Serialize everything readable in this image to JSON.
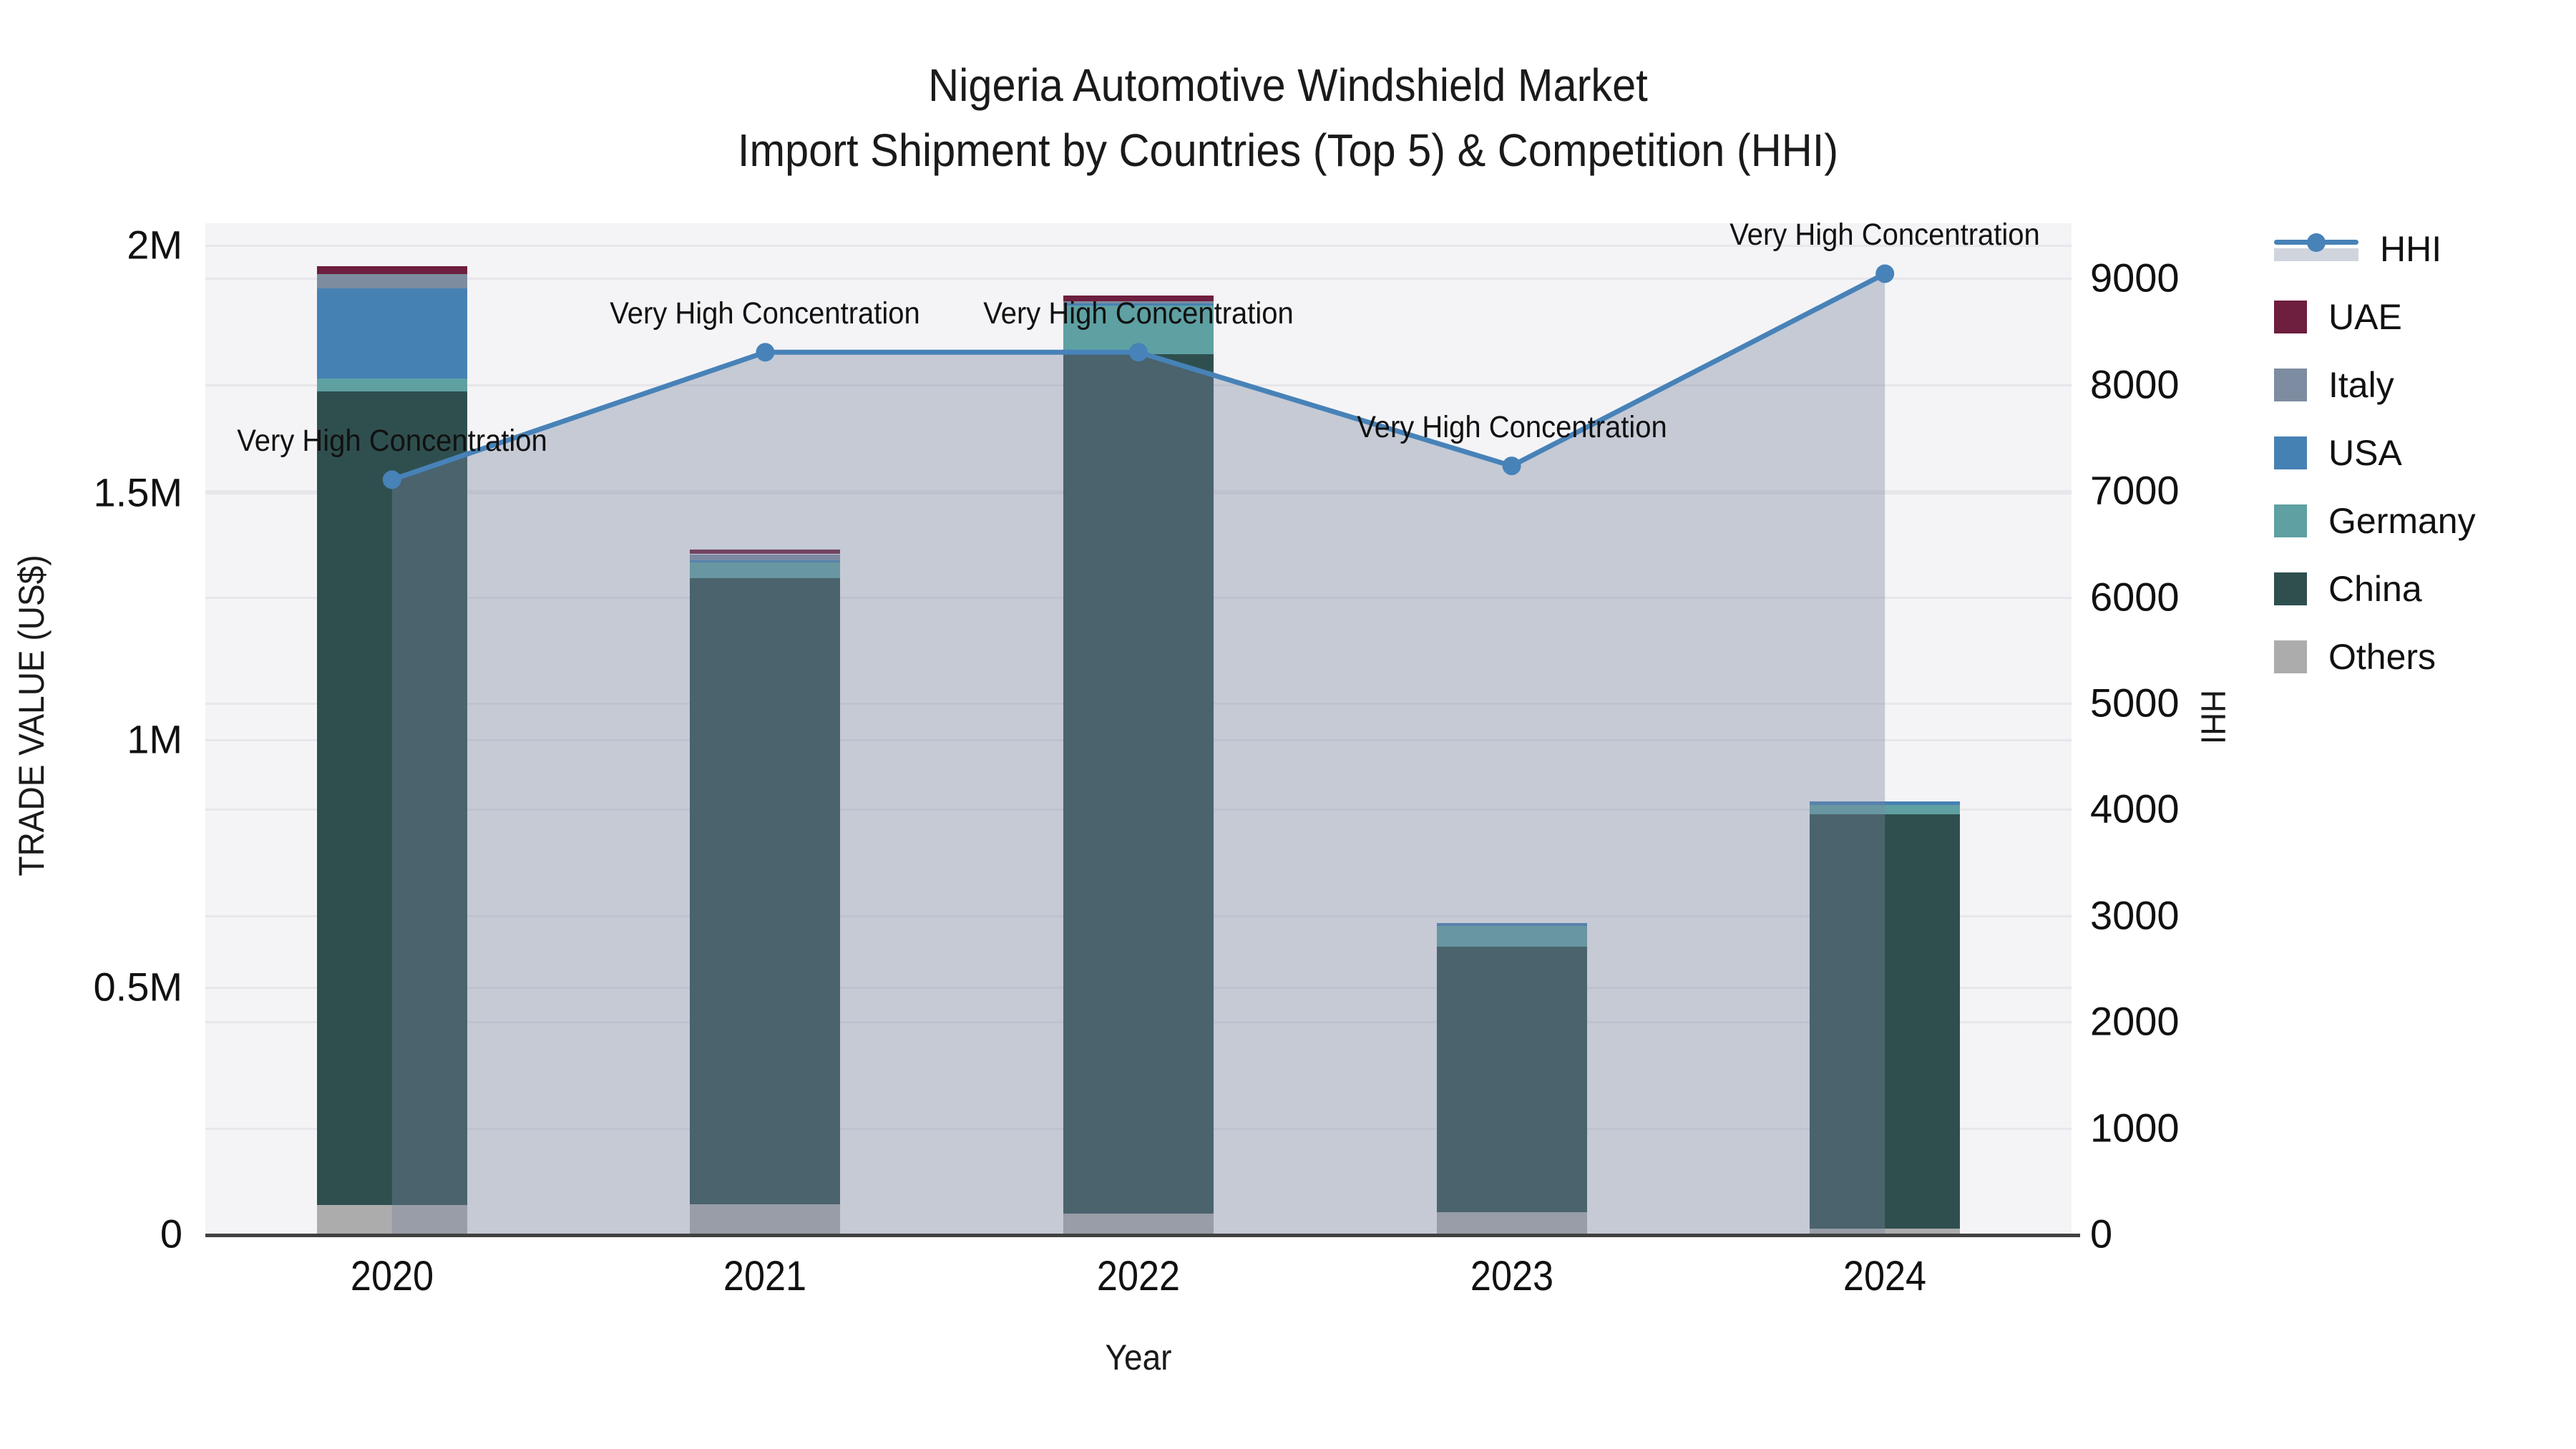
{
  "title": {
    "line1": "Nigeria Automotive Windshield Market",
    "line2": "Import Shipment by Countries (Top 5) & Competition (HHI)"
  },
  "axes": {
    "y_left": {
      "label": "TRADE VALUE (US$)",
      "tick_labels": [
        "0",
        "0.5M",
        "1M",
        "1.5M",
        "2M"
      ],
      "tick_values": [
        0,
        500000,
        1000000,
        1500000,
        2000000
      ],
      "max": 2000000
    },
    "y_right": {
      "label": "HHI",
      "tick_labels": [
        "0",
        "1000",
        "2000",
        "3000",
        "4000",
        "5000",
        "6000",
        "7000",
        "8000",
        "9000"
      ],
      "tick_values": [
        0,
        1000,
        2000,
        3000,
        4000,
        5000,
        6000,
        7000,
        8000,
        9000
      ],
      "max_tick": 9000
    },
    "x": {
      "label": "Year",
      "categories": [
        "2020",
        "2021",
        "2022",
        "2023",
        "2024"
      ]
    }
  },
  "chart_data": {
    "type": "combo: stacked bar + line (area fill)",
    "title": "Nigeria Automotive Windshield Market — Import Shipment by Countries (Top 5) & Competition (HHI)",
    "categories": [
      "2020",
      "2021",
      "2022",
      "2023",
      "2024"
    ],
    "bar_unit": "US$ trade value",
    "stack_order_bottom_to_top": [
      "Others",
      "China",
      "Germany",
      "USA",
      "Italy",
      "UAE"
    ],
    "series": [
      {
        "name": "Others",
        "color": "#ACACAC",
        "values": [
          59000,
          60000,
          40000,
          43000,
          10000
        ]
      },
      {
        "name": "China",
        "color": "#2F4F4F",
        "values": [
          1645000,
          1266000,
          1738000,
          537000,
          838000
        ]
      },
      {
        "name": "Germany",
        "color": "#5FA0A2",
        "values": [
          26000,
          32000,
          100000,
          42000,
          19000
        ]
      },
      {
        "name": "USA",
        "color": "#4681B4",
        "values": [
          182000,
          4000,
          3000,
          6000,
          7000
        ]
      },
      {
        "name": "Italy",
        "color": "#7D8CA0",
        "values": [
          29000,
          12000,
          4000,
          0,
          0
        ]
      },
      {
        "name": "UAE",
        "color": "#6E1E3E",
        "values": [
          16000,
          9000,
          12000,
          0,
          0
        ]
      }
    ],
    "bar_totals": [
      1957000,
      1383000,
      1897000,
      628000,
      874000
    ],
    "line": {
      "name": "HHI",
      "color": "#4782B8",
      "fill_color": "rgba(119,132,159,0.375)",
      "values": [
        7100,
        8300,
        8300,
        7230,
        9040
      ]
    },
    "annotations": [
      {
        "category": "2020",
        "text": "Very High Concentration"
      },
      {
        "category": "2021",
        "text": "Very High Concentration"
      },
      {
        "category": "2022",
        "text": "Very High Concentration"
      },
      {
        "category": "2023",
        "text": "Very High Concentration"
      },
      {
        "category": "2024",
        "text": "Very High Concentration"
      }
    ],
    "ylim_left": [
      0,
      2000000
    ],
    "ylim_right": [
      0,
      9520
    ],
    "grid": "horizontal gridlines for both axes",
    "legend_position": "right, outside plot"
  },
  "legend": {
    "items": [
      {
        "label": "HHI",
        "type": "line",
        "color": "#4782B8"
      },
      {
        "label": "UAE",
        "type": "patch",
        "color": "#6E1E3E"
      },
      {
        "label": "Italy",
        "type": "patch",
        "color": "#7D8CA0"
      },
      {
        "label": "USA",
        "type": "patch",
        "color": "#4681B4"
      },
      {
        "label": "Germany",
        "type": "patch",
        "color": "#5FA0A2"
      },
      {
        "label": "China",
        "type": "patch",
        "color": "#2F4F4F"
      },
      {
        "label": "Others",
        "type": "patch",
        "color": "#ACACAC"
      }
    ]
  },
  "colors": {
    "plot_background": "#f4f4f6",
    "figure_background": "#ffffff",
    "gridline": "#e7e7eb",
    "axis_spine": "#414141",
    "text": "#1a1a1a"
  }
}
